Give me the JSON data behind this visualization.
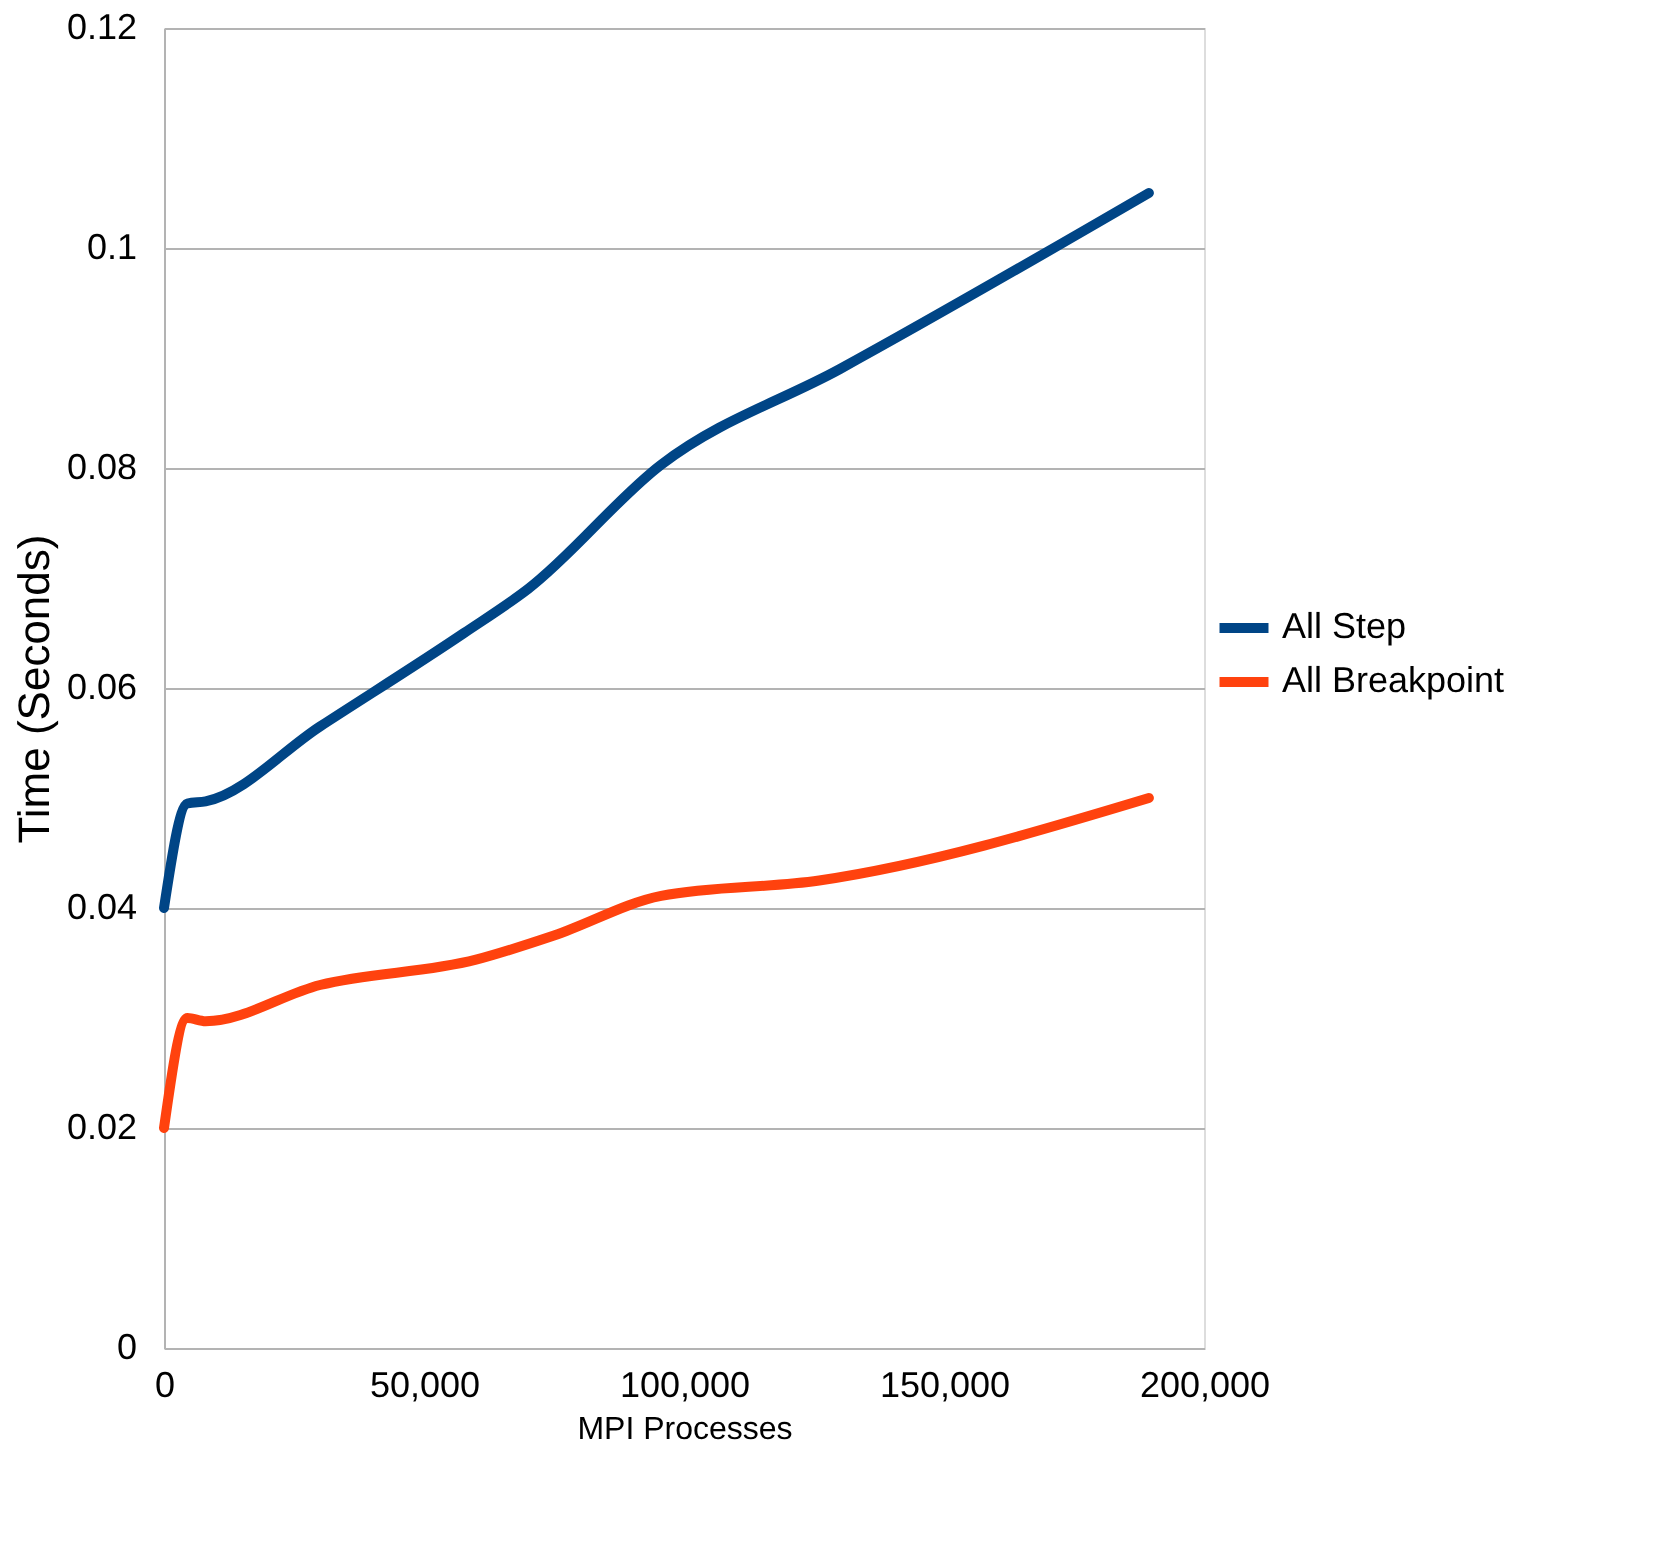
{
  "chart_data": {
    "type": "line",
    "xlabel": "MPI Processes",
    "ylabel": "Time (Seconds)",
    "xlim": [
      0,
      200000
    ],
    "xticks": [
      0,
      {
        "value": 50000,
        "label": "50,000"
      },
      {
        "value": 100000,
        "label": "100,000"
      },
      {
        "value": 150000,
        "label": "150,000"
      },
      {
        "value": 200000,
        "label": "200,000"
      }
    ],
    "ylim": [
      0,
      0.12
    ],
    "yticks": [
      0,
      0.02,
      0.04,
      0.06,
      0.08,
      0.1,
      0.12
    ],
    "grid": "y",
    "legend": "right",
    "marker": "none",
    "line_style": "solid",
    "series": [
      {
        "name": "All Step",
        "color": "#004586",
        "x": [
          0,
          4500,
          8000,
          30000,
          57700,
          70000,
          95600,
          130000,
          189400
        ],
        "values": [
          0.04,
          0.0495,
          0.0497,
          0.0565,
          0.065,
          0.069,
          0.0803,
          0.089,
          0.105
        ]
      },
      {
        "name": "All Breakpoint",
        "color": "#ff420e",
        "x": [
          0,
          4500,
          8000,
          30000,
          60000,
          75000,
          95600,
          126000,
          189400
        ],
        "values": [
          0.02,
          0.03,
          0.0297,
          0.033,
          0.0353,
          0.0375,
          0.0411,
          0.0425,
          0.05
        ]
      }
    ]
  }
}
